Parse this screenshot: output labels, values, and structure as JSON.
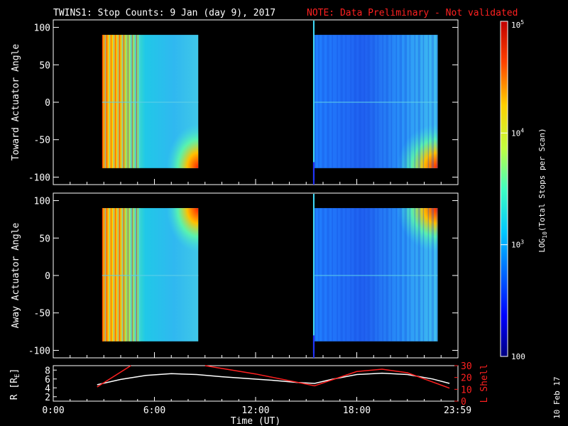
{
  "header": {
    "title": "TWINS1: Stop Counts:  9 Jan (day   9), 2017",
    "note": "NOTE: Data Preliminary - Not validated"
  },
  "colors": {
    "note": "#ff2020",
    "orbit_r": "#ffffff",
    "orbit_lshell": "#ff2020",
    "frame": "#ffffff",
    "background": "#000000"
  },
  "chart_data": [
    {
      "type": "heatmap",
      "panel": "toward",
      "ylabel": "Toward Actuator Angle",
      "ylim": [
        -110,
        110
      ],
      "yticks": [
        "100",
        "50",
        "0",
        "-50",
        "-100"
      ],
      "ytick_values": [
        100,
        50,
        0,
        -50,
        -100
      ],
      "xlim": [
        0,
        24
      ],
      "data_blocks": [
        {
          "t_start": 2.9,
          "t_end": 8.6,
          "angle_min": -88,
          "angle_max": 90
        },
        {
          "t_start": 15.5,
          "t_end": 22.8,
          "angle_min": -88,
          "angle_max": 90
        }
      ],
      "marker_time": 15.45
    },
    {
      "type": "heatmap",
      "panel": "away",
      "ylabel": "Away Actuator Angle",
      "ylim": [
        -110,
        110
      ],
      "yticks": [
        "100",
        "50",
        "0",
        "-50",
        "-100"
      ],
      "ytick_values": [
        100,
        50,
        0,
        -50,
        -100
      ],
      "xlim": [
        0,
        24
      ],
      "data_blocks": [
        {
          "t_start": 2.9,
          "t_end": 8.6,
          "angle_min": -88,
          "angle_max": 90
        },
        {
          "t_start": 15.5,
          "t_end": 22.8,
          "angle_min": -88,
          "angle_max": 90
        }
      ],
      "marker_time": 15.45
    },
    {
      "type": "line",
      "panel": "orbit",
      "ylabel_left": "R [R",
      "ylabel_left_sub": "E",
      "ylabel_left_close": "]",
      "ylabel_right": "L Shell",
      "ylim_left": [
        1,
        9
      ],
      "yticks_left": [
        "8",
        "6",
        "4",
        "2"
      ],
      "ytick_left_values": [
        8,
        6,
        4,
        2
      ],
      "ylim_right": [
        0,
        30
      ],
      "yticks_right": [
        "30",
        "20",
        "10",
        "0"
      ],
      "ytick_right_values": [
        30,
        20,
        10,
        0
      ],
      "xlim": [
        0,
        24
      ],
      "xticks": [
        "0:00",
        "6:00",
        "12:00",
        "18:00",
        "23:59"
      ],
      "xtick_values": [
        0,
        6,
        12,
        18,
        23.98
      ],
      "xlabel": "Time (UT)",
      "series": [
        {
          "axis": "left",
          "x": [
            2.6,
            4.0,
            5.5,
            7.0,
            8.5,
            10,
            11.5,
            13,
            14.5,
            15.5,
            16.5,
            18,
            19.5,
            21,
            22.5,
            23.5
          ],
          "y": [
            4.7,
            5.9,
            6.8,
            7.2,
            7.0,
            6.5,
            6.1,
            5.7,
            5.2,
            5.0,
            5.9,
            7.0,
            7.3,
            7.0,
            6.0,
            5.0
          ]
        },
        {
          "axis": "right",
          "x": [
            2.6,
            4.6,
            null,
            9.0,
            12,
            15.5,
            18,
            19.5,
            21,
            23.5
          ],
          "y": [
            12,
            30,
            null,
            30,
            23,
            13,
            25,
            27,
            24,
            11
          ]
        }
      ]
    }
  ],
  "colorbar": {
    "label_log": "LOG",
    "label_sub": "10",
    "label_rest": "(Total Stops per Scan)",
    "ticks": [
      "10",
      "10",
      "10",
      "100"
    ],
    "tick_exps": [
      "5",
      "4",
      "3",
      ""
    ],
    "tick_values": [
      100000,
      10000,
      1000,
      100
    ],
    "range": [
      100,
      100000
    ]
  },
  "footer": {
    "date": "10 Feb 17"
  }
}
